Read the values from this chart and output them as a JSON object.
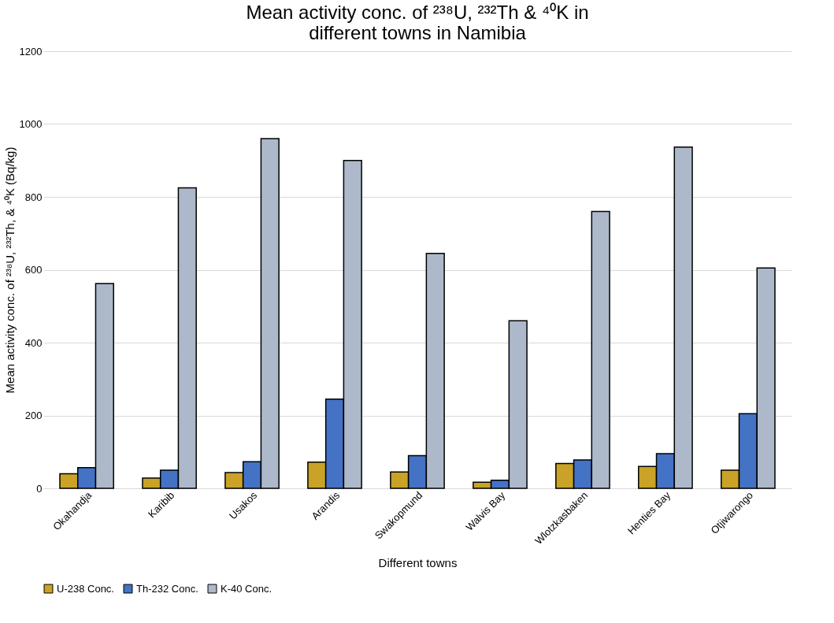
{
  "chart_data": {
    "type": "bar",
    "title": "Mean activity conc. of ²³⁸U, ²³²Th & ⁴⁰K in different towns in Namibia",
    "xlabel": "Different  towns",
    "ylabel": "Mean activity conc. of ²³⁸U, ²³²Th, & ⁴⁰K (Bq/kg)",
    "categories": [
      "Okahandja",
      "Karibib",
      "Usakos",
      "Arandis",
      "Swakopmund",
      "Walvis Bay",
      "Wlotzkasbaken",
      "Henties Bay",
      "Otjiwarongo"
    ],
    "series": [
      {
        "name": "U-238 Conc.",
        "color": "#c9a227",
        "values": [
          40,
          28,
          43,
          72,
          45,
          17,
          68,
          60,
          50
        ]
      },
      {
        "name": "Th-232 Conc.",
        "color": "#4472c4",
        "values": [
          57,
          50,
          73,
          245,
          90,
          22,
          78,
          95,
          205
        ]
      },
      {
        "name": "K-40 Conc.",
        "color": "#adb9ca",
        "values": [
          562,
          825,
          960,
          900,
          645,
          460,
          760,
          937,
          605
        ]
      }
    ],
    "ylim": [
      0,
      1200
    ],
    "yticks": [
      0,
      200,
      400,
      600,
      800,
      1000,
      1200
    ],
    "grid": "y",
    "legend": "bottom"
  }
}
